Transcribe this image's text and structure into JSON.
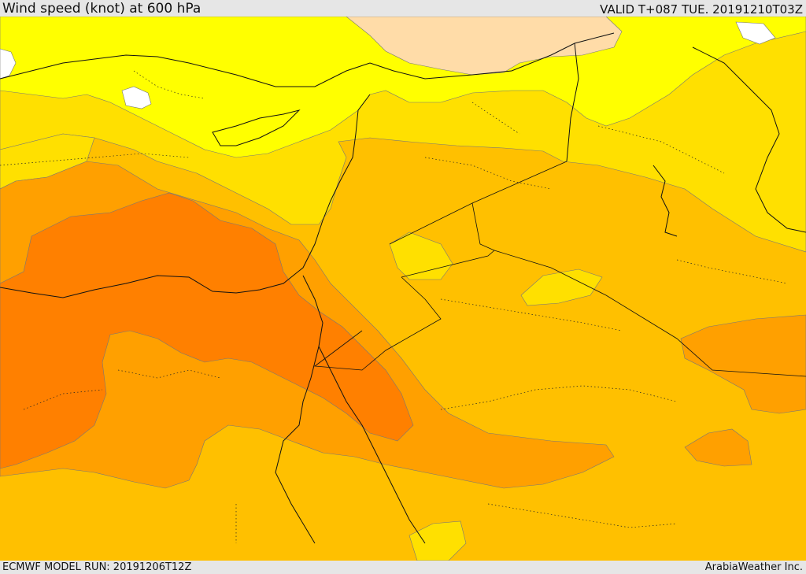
{
  "header": {
    "title": "Wind speed (knot) at 600 hPa",
    "valid": "VALID T+087 TUE. 20191210T03Z"
  },
  "footer": {
    "model_run": "ECMWF MODEL RUN: 20191206T12Z",
    "provider": "ArabiaWeather Inc."
  },
  "colors": {
    "band_0_5": "#ffffff",
    "band_5_10": "#ffff00",
    "band_10_15": "#ffe000",
    "band_15_20": "#ffc000",
    "band_20_25": "#ffa000",
    "band_25_30": "#ff8000",
    "band_high": "#ffdca8"
  }
}
